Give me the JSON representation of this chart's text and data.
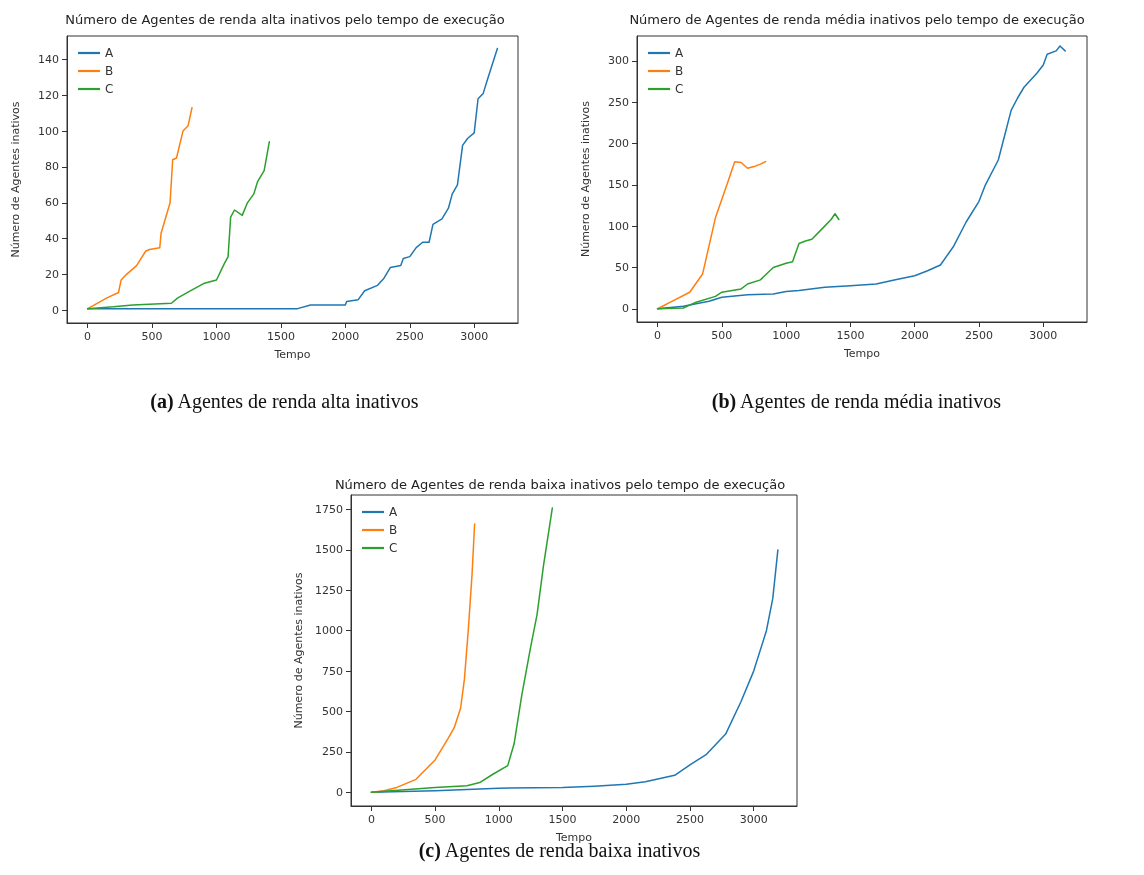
{
  "chart_data": [
    {
      "type": "line",
      "title": "Número de Agentes de renda alta inativos pelo tempo de execução",
      "xlabel": "Tempo",
      "ylabel": "Número de Agentes inativos",
      "annotations": [
        "(a) Agentes de renda alta inativos"
      ],
      "legend": "top left",
      "grid": false,
      "xlim": [
        -160,
        3340
      ],
      "xticks": [
        0,
        500,
        1000,
        1500,
        2000,
        2500,
        3000
      ],
      "ylim": [
        -7,
        153
      ],
      "yticks": [
        0,
        20,
        40,
        60,
        80,
        100,
        120,
        140
      ],
      "series": [
        {
          "name": "A",
          "color": "#1f77b4",
          "x": [
            0,
            1630,
            1730,
            2000,
            2010,
            2100,
            2150,
            2250,
            2300,
            2350,
            2430,
            2450,
            2500,
            2550,
            2600,
            2650,
            2680,
            2750,
            2800,
            2830,
            2870,
            2910,
            2950,
            3000,
            3030,
            3070,
            3100,
            3180
          ],
          "values": [
            1,
            1,
            3,
            3,
            5,
            6,
            11,
            14,
            18,
            24,
            25,
            29,
            30,
            35,
            38,
            38,
            48,
            51,
            57,
            65,
            70,
            92,
            96,
            99,
            118,
            121,
            128,
            146
          ]
        },
        {
          "name": "B",
          "color": "#ff7f0e",
          "x": [
            0,
            50,
            150,
            240,
            260,
            300,
            380,
            450,
            480,
            560,
            570,
            640,
            660,
            690,
            740,
            780,
            810
          ],
          "values": [
            1,
            3,
            7,
            10,
            17,
            20,
            25,
            33,
            34,
            35,
            43,
            60,
            84,
            85,
            100,
            103,
            113
          ]
        },
        {
          "name": "C",
          "color": "#2ca02c",
          "x": [
            0,
            200,
            350,
            650,
            700,
            800,
            900,
            1000,
            1060,
            1090,
            1110,
            1140,
            1200,
            1240,
            1290,
            1320,
            1370,
            1410
          ],
          "values": [
            1,
            2,
            3,
            4,
            7,
            11,
            15,
            17,
            26,
            30,
            52,
            56,
            53,
            60,
            65,
            72,
            78,
            94
          ]
        }
      ]
    },
    {
      "type": "line",
      "title": "Número de Agentes de renda média inativos pelo tempo de execução",
      "xlabel": "Tempo",
      "ylabel": "Número de Agentes inativos",
      "annotations": [
        "(b) Agentes de renda média inativos"
      ],
      "legend": "top left",
      "grid": false,
      "xlim": [
        -160,
        3340
      ],
      "xticks": [
        0,
        500,
        1000,
        1500,
        2000,
        2500,
        3000
      ],
      "ylim": [
        -16,
        330
      ],
      "yticks": [
        0,
        50,
        100,
        150,
        200,
        250,
        300
      ],
      "series": [
        {
          "name": "A",
          "color": "#1f77b4",
          "x": [
            0,
            200,
            400,
            500,
            700,
            900,
            1000,
            1100,
            1300,
            1500,
            1700,
            1850,
            2000,
            2100,
            2200,
            2300,
            2400,
            2500,
            2550,
            2650,
            2700,
            2750,
            2800,
            2850,
            2950,
            3000,
            3030,
            3100,
            3130,
            3170
          ],
          "values": [
            0,
            3,
            9,
            14,
            17,
            18,
            21,
            22,
            26,
            28,
            30,
            35,
            40,
            46,
            53,
            75,
            105,
            130,
            150,
            180,
            210,
            240,
            255,
            268,
            285,
            295,
            308,
            312,
            318,
            312
          ]
        },
        {
          "name": "B",
          "color": "#ff7f0e",
          "x": [
            0,
            100,
            250,
            350,
            450,
            550,
            600,
            650,
            700,
            750,
            800,
            840
          ],
          "values": [
            0,
            8,
            20,
            42,
            110,
            155,
            178,
            177,
            170,
            172,
            175,
            178
          ]
        },
        {
          "name": "C",
          "color": "#2ca02c",
          "x": [
            0,
            200,
            300,
            450,
            500,
            650,
            700,
            800,
            900,
            1000,
            1050,
            1100,
            1150,
            1200,
            1300,
            1350,
            1380,
            1410
          ],
          "values": [
            0,
            1,
            8,
            15,
            20,
            24,
            30,
            35,
            50,
            55,
            57,
            79,
            82,
            84,
            100,
            108,
            115,
            108
          ]
        }
      ]
    },
    {
      "type": "line",
      "title": "Número de Agentes de renda baixa inativos pelo tempo de execução",
      "xlabel": "Tempo",
      "ylabel": "Número de Agentes inativos",
      "annotations": [
        "(c) Agentes de renda baixa inativos"
      ],
      "legend": "top left",
      "grid": false,
      "xlim": [
        -160,
        3340
      ],
      "xticks": [
        0,
        500,
        1000,
        1500,
        2000,
        2500,
        3000
      ],
      "ylim": [
        -85,
        1840
      ],
      "yticks": [
        0,
        250,
        500,
        750,
        1000,
        1250,
        1500,
        1750
      ],
      "series": [
        {
          "name": "A",
          "color": "#1f77b4",
          "x": [
            0,
            500,
            1000,
            1500,
            1750,
            2000,
            2150,
            2380,
            2500,
            2630,
            2780,
            2900,
            3000,
            3100,
            3150,
            3190
          ],
          "values": [
            0,
            10,
            25,
            30,
            38,
            50,
            65,
            105,
            170,
            235,
            360,
            560,
            750,
            1000,
            1200,
            1500
          ]
        },
        {
          "name": "B",
          "color": "#ff7f0e",
          "x": [
            0,
            100,
            200,
            350,
            500,
            600,
            650,
            700,
            730,
            760,
            790,
            810
          ],
          "values": [
            0,
            10,
            30,
            80,
            200,
            330,
            400,
            520,
            700,
            1000,
            1350,
            1660
          ]
        },
        {
          "name": "C",
          "color": "#2ca02c",
          "x": [
            0,
            500,
            750,
            850,
            950,
            1070,
            1120,
            1180,
            1250,
            1300,
            1350,
            1420
          ],
          "values": [
            0,
            30,
            40,
            60,
            110,
            165,
            300,
            600,
            900,
            1100,
            1400,
            1760
          ]
        }
      ]
    }
  ]
}
